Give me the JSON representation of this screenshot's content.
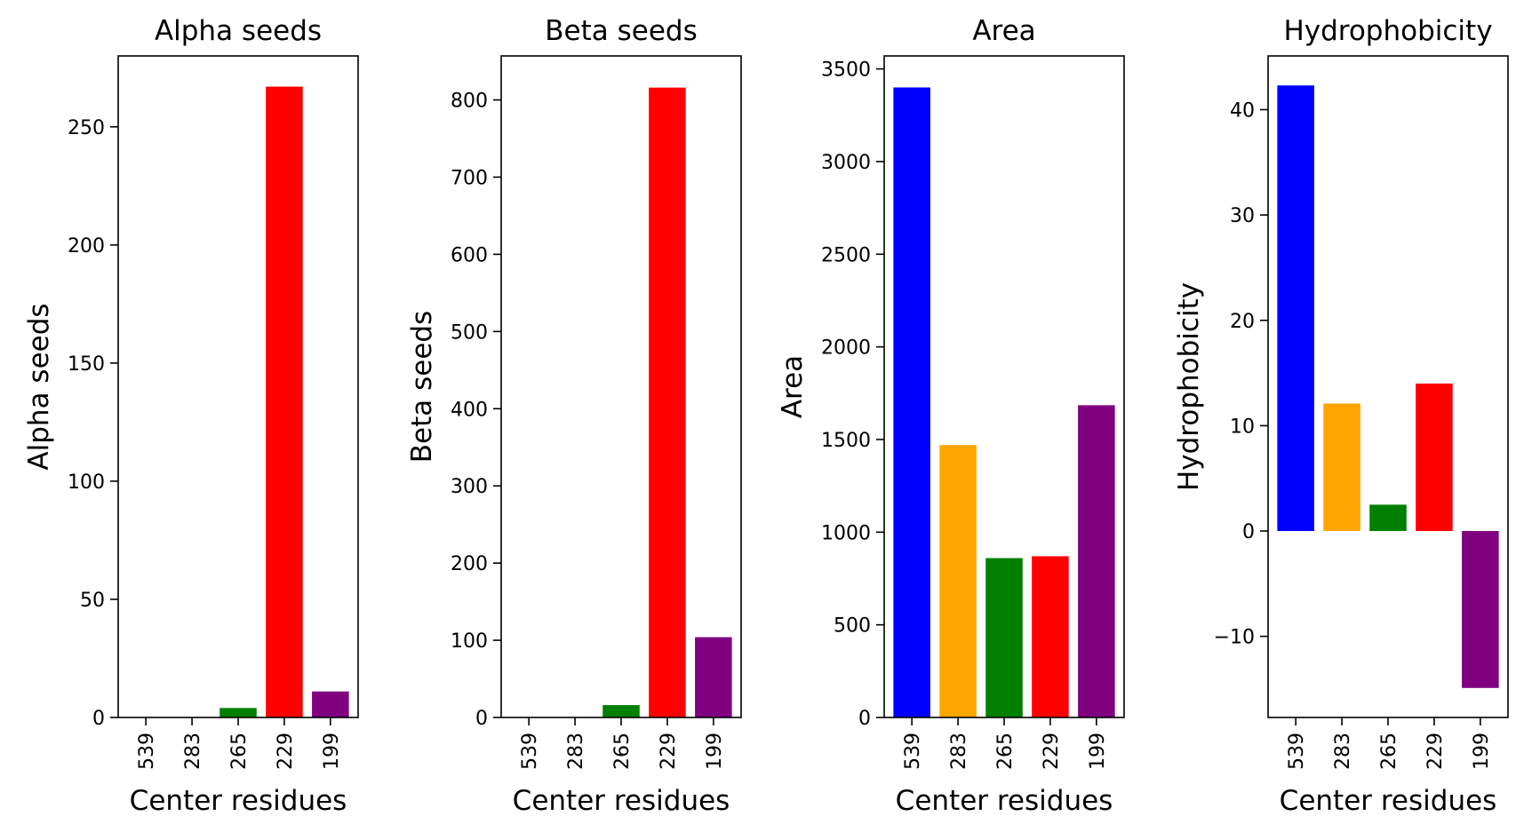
{
  "chart_data": [
    {
      "type": "bar",
      "title": "Alpha seeds",
      "xlabel": "Center residues",
      "ylabel": "Alpha seeds",
      "categories": [
        "539",
        "283",
        "265",
        "229",
        "199"
      ],
      "values": [
        0,
        0,
        4,
        267,
        11
      ],
      "colors": [
        "#0000ff",
        "#ffa500",
        "#008000",
        "#ff0000",
        "#800080"
      ],
      "ylim": [
        0,
        280
      ],
      "yticks": [
        0,
        50,
        100,
        150,
        200,
        250
      ],
      "grid": false,
      "legend": "none"
    },
    {
      "type": "bar",
      "title": "Beta seeds",
      "xlabel": "Center residues",
      "ylabel": "Beta seeds",
      "categories": [
        "539",
        "283",
        "265",
        "229",
        "199"
      ],
      "values": [
        0,
        0,
        16,
        816,
        104
      ],
      "colors": [
        "#0000ff",
        "#ffa500",
        "#008000",
        "#ff0000",
        "#800080"
      ],
      "ylim": [
        0,
        857
      ],
      "yticks": [
        0,
        100,
        200,
        300,
        400,
        500,
        600,
        700,
        800
      ],
      "grid": false,
      "legend": "none"
    },
    {
      "type": "bar",
      "title": "Area",
      "xlabel": "Center residues",
      "ylabel": "Area",
      "categories": [
        "539",
        "283",
        "265",
        "229",
        "199"
      ],
      "values": [
        3400,
        1470,
        860,
        870,
        1685
      ],
      "colors": [
        "#0000ff",
        "#ffa500",
        "#008000",
        "#ff0000",
        "#800080"
      ],
      "ylim": [
        0,
        3570
      ],
      "yticks": [
        0,
        500,
        1000,
        1500,
        2000,
        2500,
        3000,
        3500
      ],
      "grid": false,
      "legend": "none"
    },
    {
      "type": "bar",
      "title": "Hydrophobicity",
      "xlabel": "Center residues",
      "ylabel": "Hydrophobicity",
      "categories": [
        "539",
        "283",
        "265",
        "229",
        "199"
      ],
      "values": [
        42.3,
        12.1,
        2.5,
        14.0,
        -14.9
      ],
      "colors": [
        "#0000ff",
        "#ffa500",
        "#008000",
        "#ff0000",
        "#800080"
      ],
      "ylim": [
        -17.7,
        45.1
      ],
      "yticks": [
        -10,
        0,
        10,
        20,
        30,
        40
      ],
      "grid": false,
      "legend": "none"
    }
  ]
}
